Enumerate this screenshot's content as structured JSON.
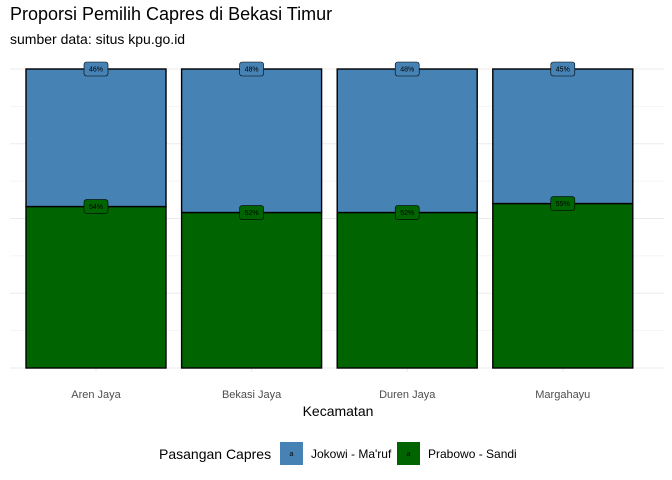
{
  "chart_data": {
    "type": "bar",
    "stacked": true,
    "title": "Proporsi Pemilih Capres di Bekasi Timur",
    "subtitle": "sumber data: situs kpu.go.id",
    "xlabel": "Kecamatan",
    "ylabel": "",
    "ylim": [
      0,
      1
    ],
    "grid": true,
    "legend_position": "bottom",
    "legend_title": "Pasangan Capres",
    "legend_key_glyph": "a",
    "categories": [
      "Aren Jaya",
      "Bekasi Jaya",
      "Duren Jaya",
      "Margahayu"
    ],
    "series": [
      {
        "name": "Prabowo - Sandi",
        "color": "#006400",
        "values": [
          0.54,
          0.52,
          0.52,
          0.55
        ],
        "labels": [
          "54%",
          "52%",
          "52%",
          "55%"
        ]
      },
      {
        "name": "Jokowi - Ma'ruf",
        "color": "#4682b4",
        "values": [
          0.46,
          0.48,
          0.48,
          0.45
        ],
        "labels": [
          "46%",
          "48%",
          "48%",
          "45%"
        ]
      }
    ],
    "legend_order": [
      "Jokowi - Ma'ruf",
      "Prabowo - Sandi"
    ]
  }
}
